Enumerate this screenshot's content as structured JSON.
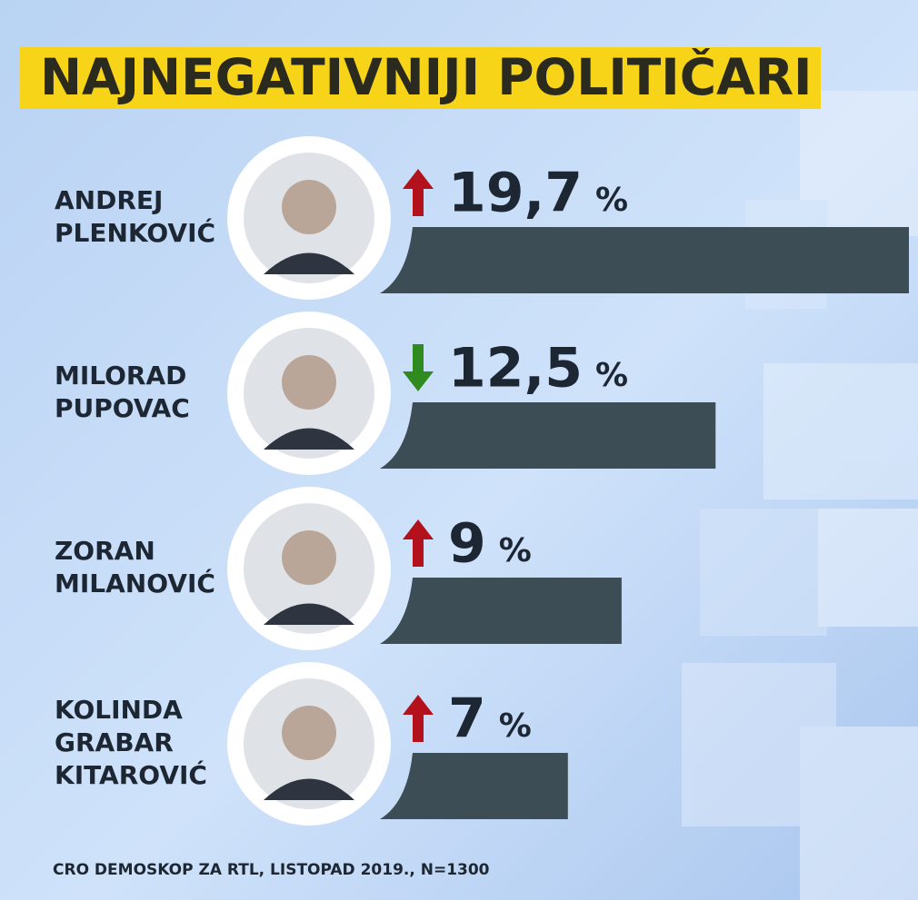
{
  "chart_data": {
    "type": "bar",
    "title": "NAJNEGATIVNIJI POLITIČARI",
    "categories": [
      [
        "ANDREJ",
        "PLENKOVIĆ"
      ],
      [
        "MILORAD",
        "PUPOVAC"
      ],
      [
        "ZORAN",
        "MILANOVIĆ"
      ],
      [
        "KOLINDA",
        "GRABAR",
        "KITAROVIĆ"
      ]
    ],
    "values": [
      19.7,
      12.5,
      9,
      7
    ],
    "value_labels": [
      "19,7",
      "12,5",
      "9",
      "7"
    ],
    "value_suffix": "%",
    "trends": [
      "up",
      "down",
      "up",
      "up"
    ],
    "trend_colors": {
      "up": "#b3121d",
      "down": "#2f8a1f"
    },
    "color": "#3d4d55",
    "source": "CRO DEMOSKOP ZA RTL, LISTOPAD 2019., N=1300"
  }
}
